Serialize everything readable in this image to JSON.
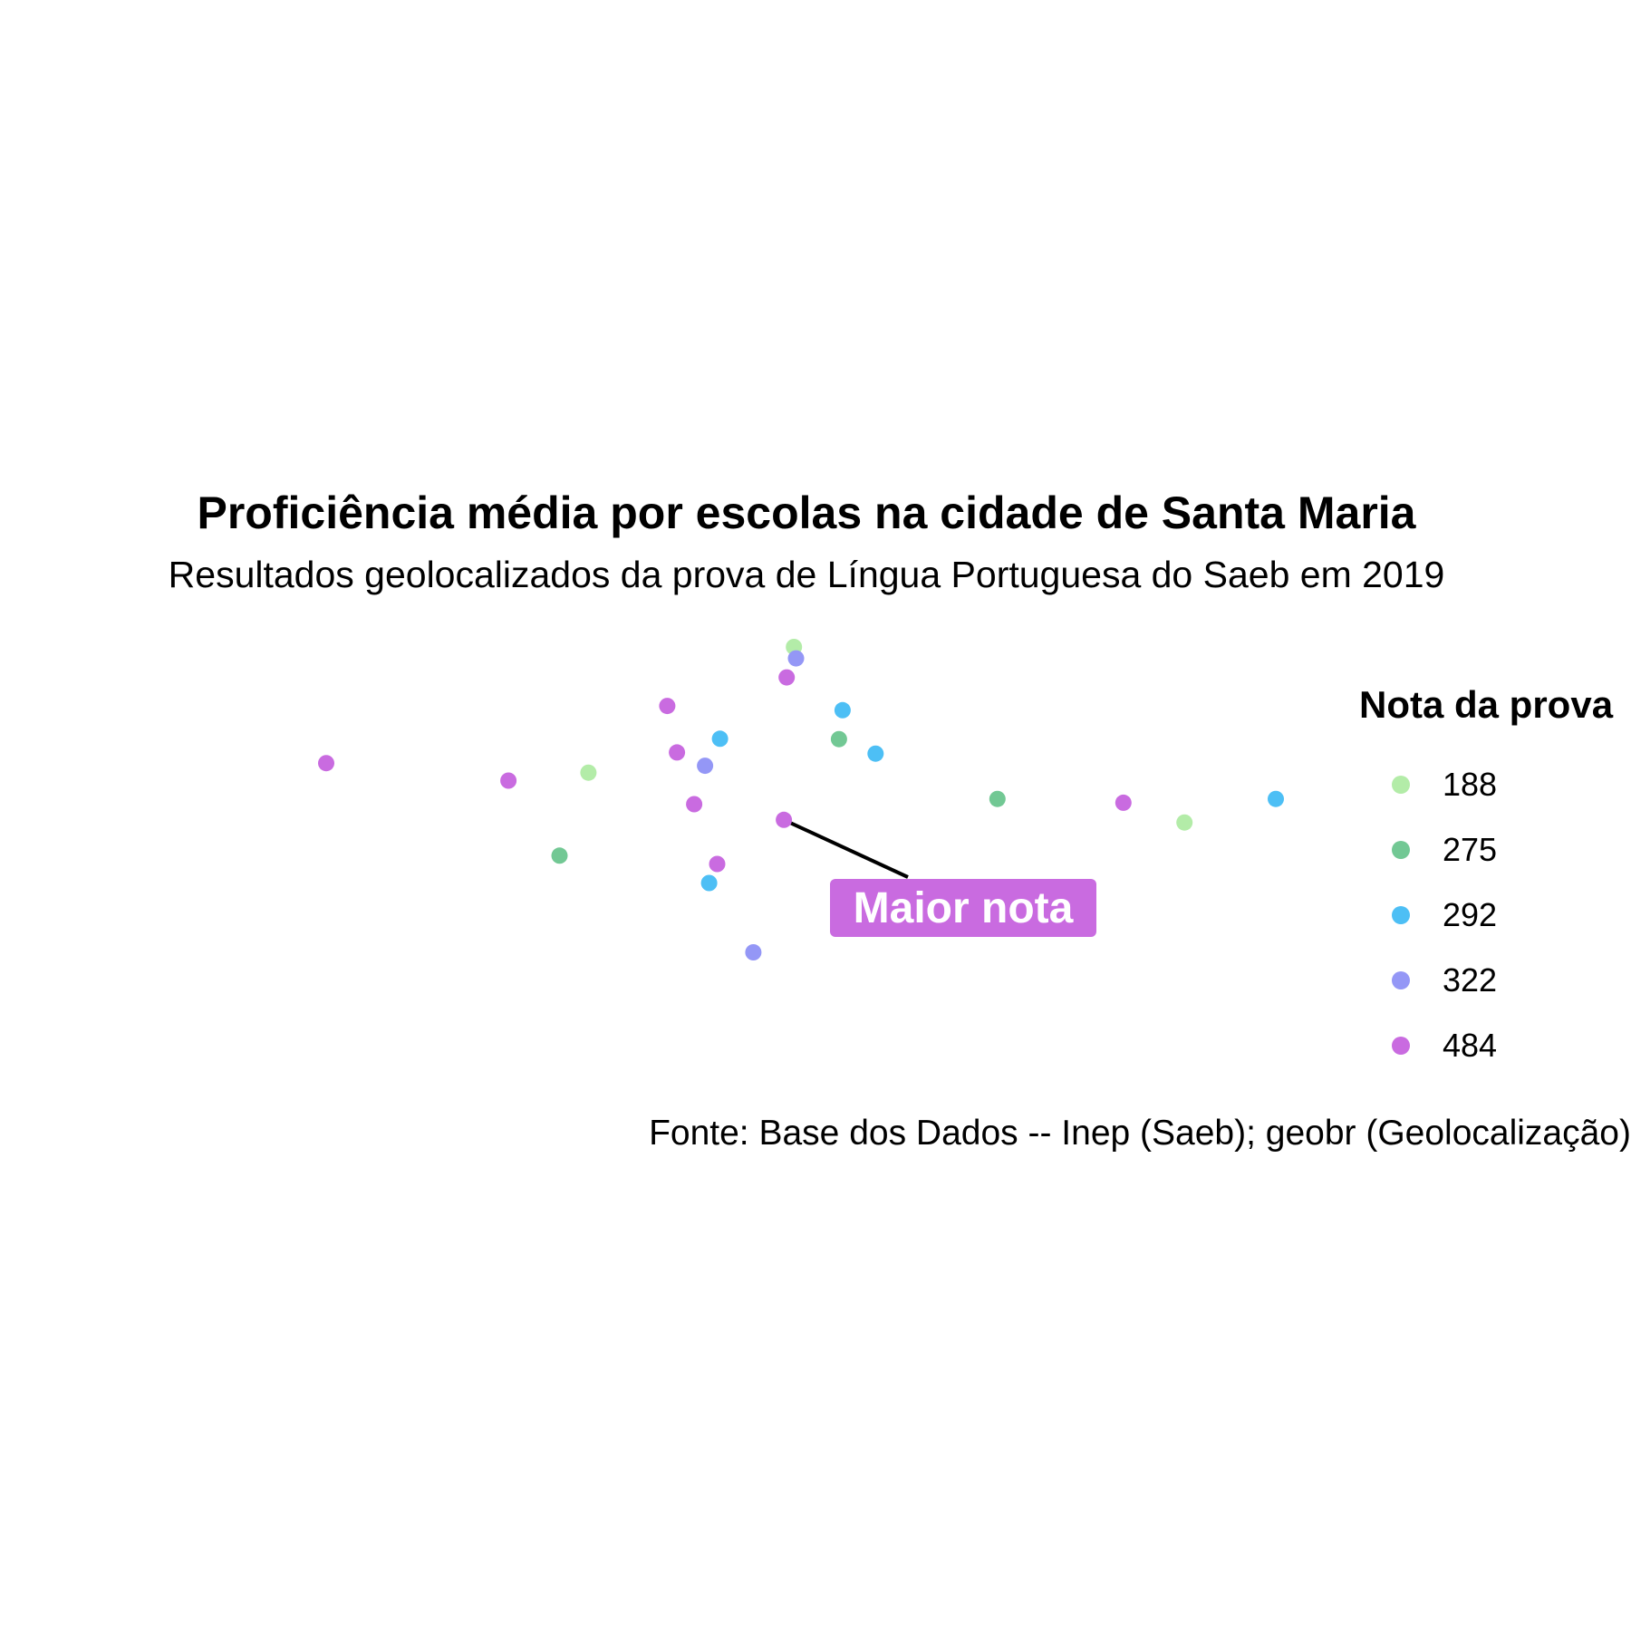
{
  "chart_data": {
    "type": "scatter",
    "title": "Proficiência média por escolas na cidade de Santa Maria",
    "subtitle": "Resultados geolocalizados da prova de Língua Portuguesa do Saeb em 2019",
    "caption": "Fonte: Base dos Dados -- Inep (Saeb); geobr (Geolocalização)",
    "legend": {
      "title": "Nota da prova",
      "placement": "right",
      "levels": [
        {
          "label": "188",
          "color": "#b3eca8"
        },
        {
          "label": "275",
          "color": "#72c894"
        },
        {
          "label": "292",
          "color": "#4dbff5"
        },
        {
          "label": "322",
          "color": "#9497f6"
        },
        {
          "label": "484",
          "color": "#c96be0"
        }
      ]
    },
    "grid": false,
    "annotation": {
      "text": "Maior nota",
      "color": "#c96be0",
      "point_index": 19
    },
    "points": [
      {
        "lon": 0.163,
        "lat": 0.802,
        "nota": "188"
      },
      {
        "lon": 0.168,
        "lat": 0.772,
        "nota": "322"
      },
      {
        "lon": 0.145,
        "lat": 0.722,
        "nota": "484"
      },
      {
        "lon": -0.152,
        "lat": 0.647,
        "nota": "484"
      },
      {
        "lon": 0.284,
        "lat": 0.636,
        "nota": "292"
      },
      {
        "lon": -0.021,
        "lat": 0.561,
        "nota": "292"
      },
      {
        "lon": 0.275,
        "lat": 0.56,
        "nota": "275"
      },
      {
        "lon": 0.366,
        "lat": 0.522,
        "nota": "292"
      },
      {
        "lon": -0.128,
        "lat": 0.525,
        "nota": "484"
      },
      {
        "lon": -0.058,
        "lat": 0.49,
        "nota": "322"
      },
      {
        "lon": -1.0,
        "lat": 0.497,
        "nota": "484"
      },
      {
        "lon": -0.348,
        "lat": 0.472,
        "nota": "188"
      },
      {
        "lon": -0.547,
        "lat": 0.451,
        "nota": "484"
      },
      {
        "lon": -0.085,
        "lat": 0.389,
        "nota": "484"
      },
      {
        "lon": 0.669,
        "lat": 0.403,
        "nota": "275"
      },
      {
        "lon": 0.982,
        "lat": 0.393,
        "nota": "484"
      },
      {
        "lon": 1.361,
        "lat": 0.403,
        "nota": "292"
      },
      {
        "lon": 1.134,
        "lat": 0.341,
        "nota": "188"
      },
      {
        "lon": -0.42,
        "lat": 0.254,
        "nota": "275"
      },
      {
        "lon": 0.138,
        "lat": 0.348,
        "nota": "484"
      },
      {
        "lon": -0.028,
        "lat": 0.232,
        "nota": "484"
      },
      {
        "lon": -0.048,
        "lat": 0.182,
        "nota": "292"
      },
      {
        "lon": 0.062,
        "lat": 0.0,
        "nota": "322"
      }
    ]
  }
}
